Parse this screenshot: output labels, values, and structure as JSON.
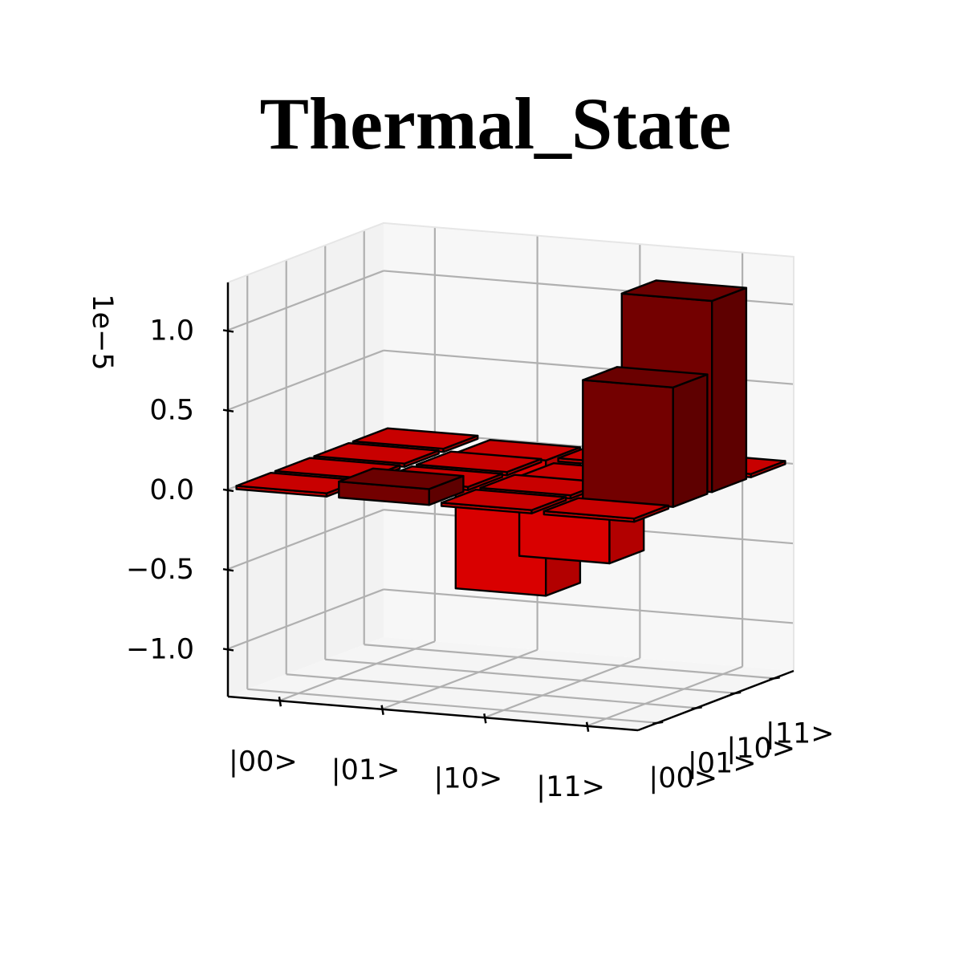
{
  "chart_data": {
    "type": "bar3d",
    "title": "Thermal_State",
    "z_offset_label": "1e−5",
    "z_ticks": [
      "1.0",
      "0.5",
      "0.0",
      "−0.5",
      "−1.0"
    ],
    "z_tick_values": [
      1.0,
      0.5,
      0.0,
      -0.5,
      -1.0
    ],
    "zlim": [
      -1.3,
      1.3
    ],
    "x_ticks": [
      "|00>",
      "|01>",
      "|10>",
      "|11>"
    ],
    "y_ticks": [
      "|00>",
      "|01>",
      "|10>",
      "|11>"
    ],
    "grid": true,
    "colors": {
      "positive": "#730000",
      "negative": "#d90000",
      "edge": "#000000",
      "pane_back": "#f2f2f2",
      "grid": "#b0b0b0"
    },
    "bars": [
      {
        "x": "|00>",
        "y": "|00>",
        "value": 0.0
      },
      {
        "x": "|00>",
        "y": "|01>",
        "value": 0.0
      },
      {
        "x": "|00>",
        "y": "|10>",
        "value": 0.0
      },
      {
        "x": "|00>",
        "y": "|11>",
        "value": 0.0
      },
      {
        "x": "|01>",
        "y": "|00>",
        "value": 0.1
      },
      {
        "x": "|01>",
        "y": "|01>",
        "value": 0.0
      },
      {
        "x": "|01>",
        "y": "|10>",
        "value": 0.0
      },
      {
        "x": "|01>",
        "y": "|11>",
        "value": -0.85
      },
      {
        "x": "|10>",
        "y": "|00>",
        "value": 0.0
      },
      {
        "x": "|10>",
        "y": "|01>",
        "value": 0.0
      },
      {
        "x": "|10>",
        "y": "|10>",
        "value": -0.5
      },
      {
        "x": "|10>",
        "y": "|11>",
        "value": 0.0
      },
      {
        "x": "|11>",
        "y": "|00>",
        "value": 0.0
      },
      {
        "x": "|11>",
        "y": "|01>",
        "value": 0.75
      },
      {
        "x": "|11>",
        "y": "|10>",
        "value": 1.2
      },
      {
        "x": "|11>",
        "y": "|11>",
        "value": 0.0
      }
    ]
  }
}
